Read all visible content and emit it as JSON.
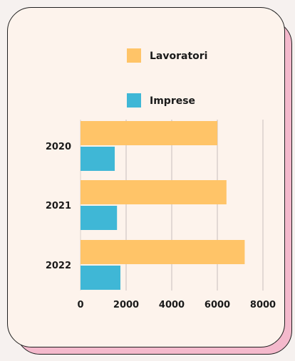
{
  "chart_data": {
    "type": "bar",
    "orientation": "horizontal",
    "categories": [
      "2020",
      "2021",
      "2022"
    ],
    "series": [
      {
        "name": "Lavoratori",
        "values": [
          6000,
          6400,
          7200
        ],
        "color": "#ffc468"
      },
      {
        "name": "Imprese",
        "values": [
          1500,
          1600,
          1750
        ],
        "color": "#3fb7d6"
      }
    ],
    "xlim": [
      0,
      8000
    ],
    "x_ticks": [
      0,
      2000,
      4000,
      6000,
      8000
    ],
    "tick_labels": [
      "0",
      "2000",
      "4000",
      "6000",
      "8000"
    ],
    "grid": true,
    "legend_position": "top"
  }
}
